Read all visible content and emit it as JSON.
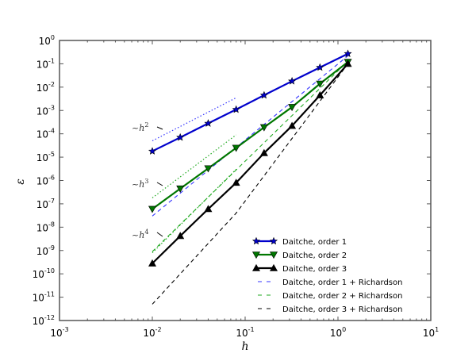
{
  "chart_data": {
    "type": "line",
    "title": "",
    "xlabel": "h",
    "ylabel": "ε",
    "xscale": "log",
    "yscale": "log",
    "xlim": [
      0.001,
      10
    ],
    "ylim": [
      1e-12,
      1
    ],
    "x_ticks": [
      "10^-3",
      "10^-2",
      "10^-1",
      "10^0",
      "10^1"
    ],
    "y_ticks": [
      "10^0",
      "10^-1",
      "10^-2",
      "10^-3",
      "10^-4",
      "10^-5",
      "10^-6",
      "10^-7",
      "10^-8",
      "10^-9",
      "10^-10",
      "10^-11",
      "10^-12"
    ],
    "grid": false,
    "legend_position": "lower right",
    "x": [
      0.01,
      0.02,
      0.04,
      0.08,
      0.16,
      0.32,
      0.64,
      1.28
    ],
    "series": [
      {
        "name": "Daitche, order 1",
        "color": "#0000cc",
        "style": "solid",
        "marker": "star",
        "values": [
          1.8e-05,
          7e-05,
          0.00028,
          0.0011,
          0.0045,
          0.018,
          0.07,
          0.27
        ]
      },
      {
        "name": "Daitche, order 2",
        "color": "#007700",
        "style": "solid",
        "marker": "triangle-down",
        "values": [
          6e-08,
          4.5e-07,
          3.3e-06,
          2.5e-05,
          0.00019,
          0.0014,
          0.014,
          0.12
        ]
      },
      {
        "name": "Daitche, order 3",
        "color": "#000000",
        "style": "solid",
        "marker": "triangle-up",
        "values": [
          2.8e-10,
          4.2e-09,
          6e-08,
          8e-07,
          1.5e-05,
          0.00022,
          0.0045,
          0.1
        ]
      },
      {
        "name": "Daitche, order 1 + Richardson",
        "color": "#3333ff",
        "style": "dashed",
        "marker": "none",
        "x": [
          0.01,
          1.28
        ],
        "values": [
          3e-08,
          0.22
        ]
      },
      {
        "name": "Daitche, order 2 + Richardson",
        "color": "#22aa22",
        "style": "dashed",
        "marker": "none",
        "x": [
          0.01,
          1.28
        ],
        "values": [
          9e-10,
          0.13
        ]
      },
      {
        "name": "Daitche, order 3 + Richardson",
        "color": "#000000",
        "style": "dashed",
        "marker": "none",
        "x": [
          0.01,
          0.08,
          1.28
        ],
        "values": [
          5e-12,
          4e-08,
          0.1
        ]
      }
    ],
    "reference_lines": [
      {
        "label": "~h^2",
        "color": "#3333ff",
        "style": "dotted",
        "x": [
          0.01,
          0.08
        ],
        "values": [
          5e-05,
          0.0035
        ]
      },
      {
        "label": "~h^3",
        "color": "#22aa22",
        "style": "dotted",
        "x": [
          0.01,
          0.08
        ],
        "values": [
          1.8e-07,
          9e-05
        ]
      },
      {
        "label": "~h^4",
        "color": "#22aa22",
        "style": "dotted",
        "x": [
          0.01,
          0.08
        ],
        "values": [
          8e-10,
          3e-06
        ]
      }
    ],
    "annotations": [
      "~h^2",
      "~h^3",
      "~h^4"
    ]
  },
  "labels": {
    "xlabel": "h",
    "ylabel": "ε",
    "ann_h2": "h",
    "ann_h2_exp": "2",
    "ann_h3": "h",
    "ann_h3_exp": "3",
    "ann_h4": "h",
    "ann_h4_exp": "4",
    "tilde": "~"
  },
  "legend": [
    "Daitche, order 1",
    "Daitche, order 2",
    "Daitche, order 3",
    "Daitche, order 1 + Richardson",
    "Daitche, order 2 + Richardson",
    "Daitche, order 3 + Richardson"
  ],
  "xticks": [
    {
      "base": "10",
      "exp": "-3"
    },
    {
      "base": "10",
      "exp": "-2"
    },
    {
      "base": "10",
      "exp": "-1"
    },
    {
      "base": "10",
      "exp": "0"
    },
    {
      "base": "10",
      "exp": "1"
    }
  ],
  "yticks": [
    {
      "base": "10",
      "exp": "0"
    },
    {
      "base": "10",
      "exp": "-1"
    },
    {
      "base": "10",
      "exp": "-2"
    },
    {
      "base": "10",
      "exp": "-3"
    },
    {
      "base": "10",
      "exp": "-4"
    },
    {
      "base": "10",
      "exp": "-5"
    },
    {
      "base": "10",
      "exp": "-6"
    },
    {
      "base": "10",
      "exp": "-7"
    },
    {
      "base": "10",
      "exp": "-8"
    },
    {
      "base": "10",
      "exp": "-9"
    },
    {
      "base": "10",
      "exp": "-10"
    },
    {
      "base": "10",
      "exp": "-11"
    },
    {
      "base": "10",
      "exp": "-12"
    }
  ]
}
